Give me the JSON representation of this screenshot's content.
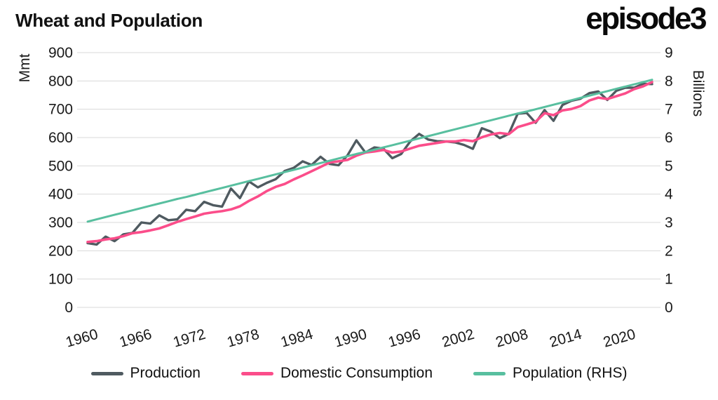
{
  "header": {
    "title": "Wheat and Population",
    "logo": "episode3"
  },
  "chart_data": {
    "type": "line",
    "title": "Wheat and Population",
    "x_start": 1960,
    "x_end": 2023,
    "x_ticks": [
      1960,
      1966,
      1972,
      1978,
      1984,
      1990,
      1996,
      2002,
      2008,
      2014,
      2020
    ],
    "left_axis": {
      "label": "Mmt",
      "min": 0,
      "max": 900,
      "step": 100
    },
    "right_axis": {
      "label": "Billions",
      "min": 0,
      "max": 9,
      "step": 1
    },
    "grid": "horizontal",
    "legend_position": "bottom",
    "series": [
      {
        "name": "Production",
        "axis": "left",
        "color": "#4f5a60",
        "width": 3.4,
        "values": [
          227,
          222,
          250,
          234,
          258,
          263,
          300,
          296,
          325,
          308,
          311,
          345,
          340,
          373,
          361,
          356,
          420,
          386,
          445,
          424,
          440,
          453,
          482,
          493,
          516,
          503,
          532,
          507,
          502,
          537,
          590,
          547,
          565,
          561,
          527,
          542,
          586,
          613,
          593,
          587,
          586,
          583,
          574,
          560,
          633,
          621,
          598,
          613,
          684,
          687,
          652,
          697,
          659,
          715,
          730,
          737,
          757,
          763,
          733,
          765,
          776,
          776,
          790,
          789
        ]
      },
      {
        "name": "Domestic Consumption",
        "axis": "left",
        "color": "#fb4d8a",
        "width": 3.6,
        "values": [
          231,
          234,
          240,
          244,
          252,
          262,
          266,
          272,
          279,
          290,
          302,
          312,
          321,
          331,
          336,
          340,
          346,
          357,
          376,
          392,
          411,
          426,
          436,
          452,
          466,
          481,
          496,
          512,
          516,
          521,
          536,
          547,
          551,
          556,
          547,
          551,
          561,
          571,
          576,
          581,
          586,
          586,
          591,
          587,
          601,
          611,
          616,
          612,
          637,
          646,
          656,
          686,
          679,
          696,
          701,
          711,
          731,
          741,
          736,
          746,
          756,
          771,
          781,
          796
        ]
      },
      {
        "name": "Population (RHS)",
        "axis": "right",
        "color": "#58bf9f",
        "width": 3.0,
        "values": [
          3.03,
          3.11,
          3.19,
          3.27,
          3.35,
          3.43,
          3.51,
          3.59,
          3.67,
          3.75,
          3.83,
          3.9,
          3.98,
          4.06,
          4.14,
          4.22,
          4.3,
          4.38,
          4.46,
          4.54,
          4.62,
          4.7,
          4.78,
          4.86,
          4.94,
          5.02,
          5.1,
          5.18,
          5.26,
          5.34,
          5.42,
          5.49,
          5.57,
          5.65,
          5.73,
          5.81,
          5.89,
          5.97,
          6.05,
          6.13,
          6.21,
          6.29,
          6.37,
          6.45,
          6.53,
          6.61,
          6.69,
          6.77,
          6.85,
          6.92,
          7.0,
          7.08,
          7.16,
          7.24,
          7.32,
          7.4,
          7.48,
          7.56,
          7.64,
          7.72,
          7.8,
          7.88,
          7.96,
          8.04
        ]
      }
    ],
    "colors": {
      "grid": "#d9d9d9",
      "text": "#1a1a1a"
    }
  },
  "legend": {
    "items": [
      "Production",
      "Domestic Consumption",
      "Population (RHS)"
    ]
  }
}
